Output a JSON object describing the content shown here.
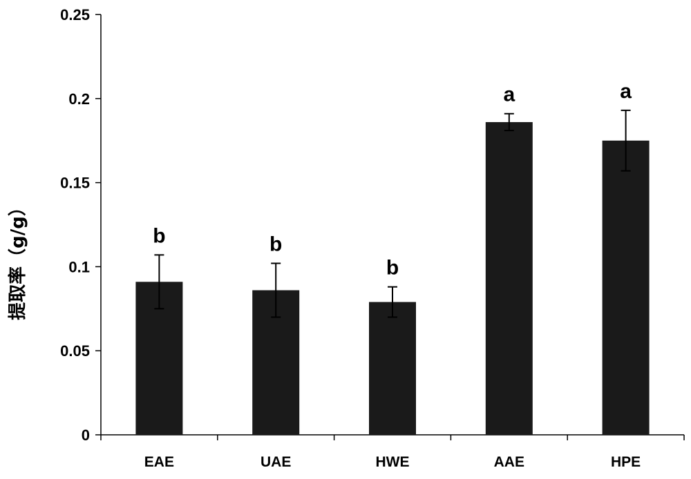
{
  "chart_data": {
    "type": "bar",
    "title": "",
    "xlabel": "",
    "ylabel": "提取率（g/g）",
    "ylim": [
      0,
      0.25
    ],
    "yticks": [
      0,
      0.05,
      0.1,
      0.15,
      0.2,
      0.25
    ],
    "ytick_labels": [
      "0",
      "0.05",
      "0.1",
      "0.15",
      "0.2",
      "0.25"
    ],
    "categories": [
      "EAE",
      "UAE",
      "HWE",
      "AAE",
      "HPE"
    ],
    "values": [
      0.091,
      0.086,
      0.079,
      0.186,
      0.175
    ],
    "errors": [
      0.016,
      0.016,
      0.009,
      0.005,
      0.018
    ],
    "significance": [
      "b",
      "b",
      "b",
      "a",
      "a"
    ],
    "bar_color": "#1a1a1a",
    "grid": false,
    "legend": "none"
  }
}
